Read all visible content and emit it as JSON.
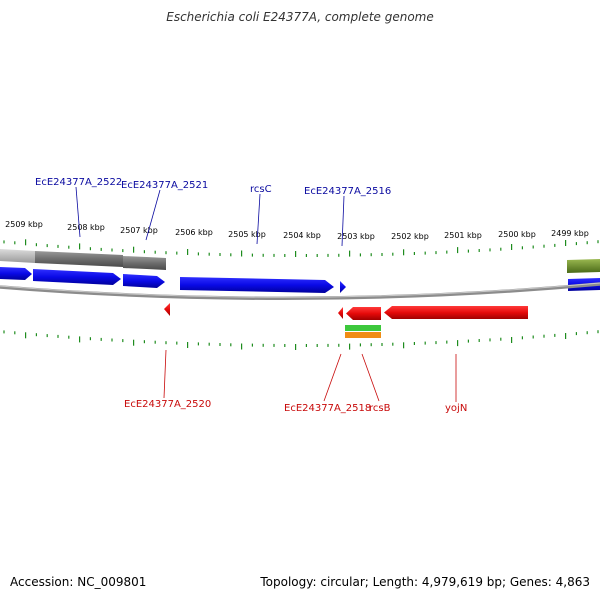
{
  "title": "Escherichia coli E24377A, complete genome",
  "footer": {
    "accession": "Accession: NC_009801",
    "summary": "Topology: circular; Length: 4,979,619 bp; Genes: 4,863"
  },
  "scale": {
    "labels": [
      "2509 kbp",
      "2508 kbp",
      "2507 kbp",
      "2506 kbp",
      "2505 kbp",
      "2504 kbp",
      "2503 kbp",
      "2502 kbp",
      "2501 kbp",
      "2500 kbp",
      "2499 kbp"
    ]
  },
  "labels_top": [
    "EcE24377A_2522",
    "EcE24377A_2521",
    "rcsC",
    "EcE24377A_2516"
  ],
  "labels_bottom": [
    "EcE24377A_2520",
    "EcE24377A_2518",
    "rcsB",
    "yojN"
  ],
  "colors": {
    "forward_gene": "#0a0ae6",
    "reverse_gene": "#e60a0a",
    "forward_label": "#0a0aa0",
    "reverse_label": "#c80a0a",
    "tick": "#1e8c1e",
    "backbone": "#8c8c8c",
    "orange_feature": "#f08c14",
    "green_feature": "#3cc83c",
    "olive_feature": "#6e8c28"
  }
}
